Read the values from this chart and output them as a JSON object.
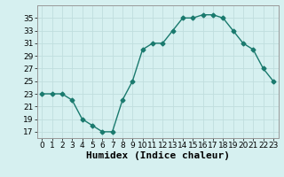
{
  "x": [
    0,
    1,
    2,
    3,
    4,
    5,
    6,
    7,
    8,
    9,
    10,
    11,
    12,
    13,
    14,
    15,
    16,
    17,
    18,
    19,
    20,
    21,
    22,
    23
  ],
  "y": [
    23,
    23,
    23,
    22,
    19,
    18,
    17,
    17,
    22,
    25,
    30,
    31,
    31,
    33,
    35,
    35,
    35.5,
    35.5,
    35,
    33,
    31,
    30,
    27,
    25
  ],
  "xlim": [
    -0.5,
    23.5
  ],
  "ylim": [
    16,
    37
  ],
  "yticks": [
    17,
    19,
    21,
    23,
    25,
    27,
    29,
    31,
    33,
    35
  ],
  "xticks": [
    0,
    1,
    2,
    3,
    4,
    5,
    6,
    7,
    8,
    9,
    10,
    11,
    12,
    13,
    14,
    15,
    16,
    17,
    18,
    19,
    20,
    21,
    22,
    23
  ],
  "xlabel": "Humidex (Indice chaleur)",
  "line_color": "#1a7a6e",
  "bg_color": "#d6f0f0",
  "grid_color": "#c0dede",
  "marker": "D",
  "marker_size": 2.5,
  "line_width": 1.0,
  "xlabel_fontsize": 8,
  "tick_fontsize": 6.5
}
